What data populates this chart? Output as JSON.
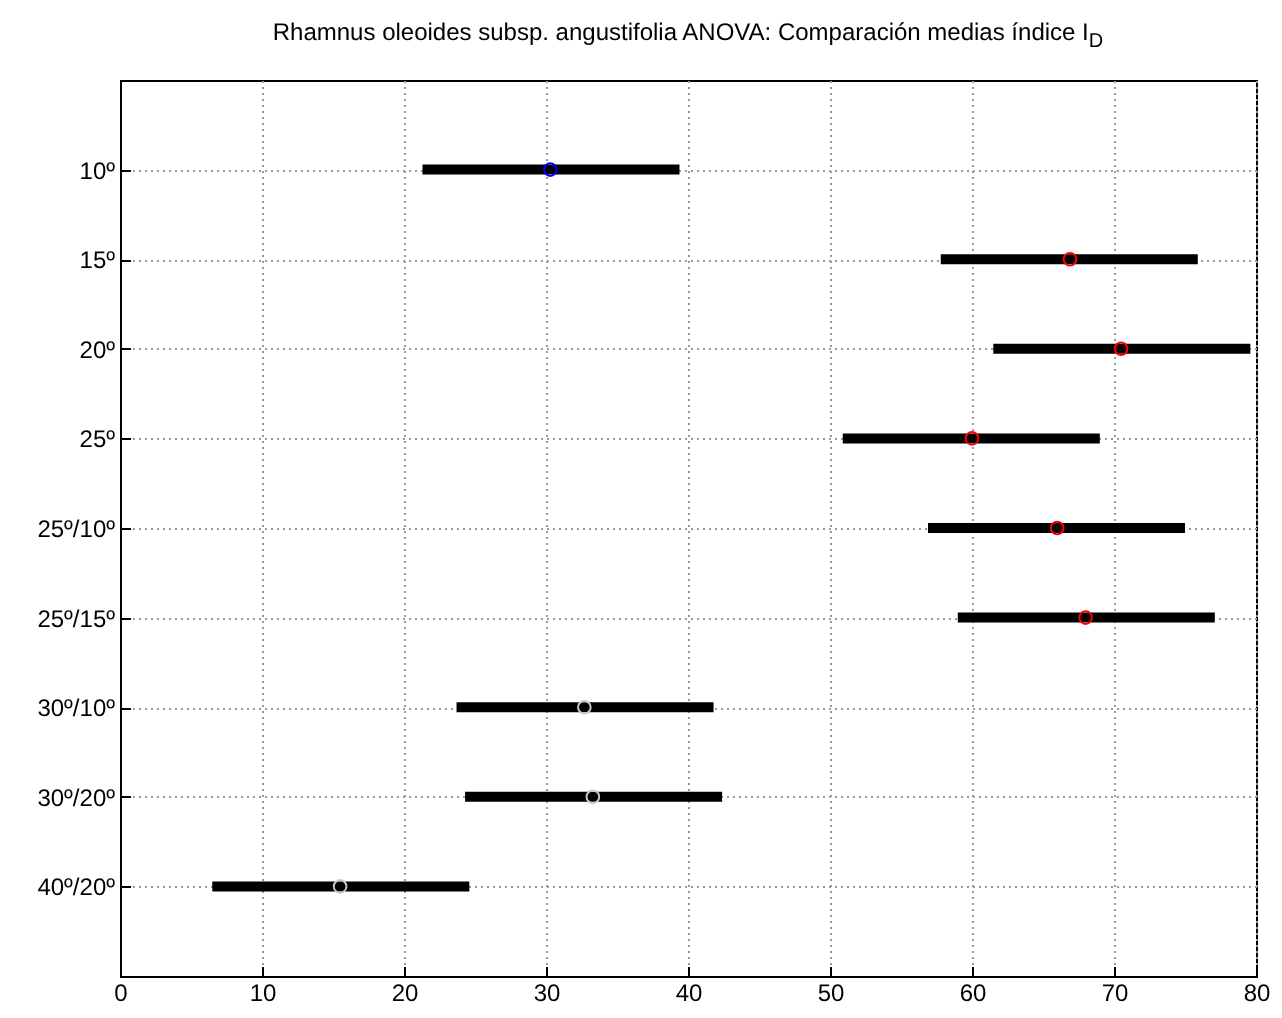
{
  "chart_data": {
    "type": "bar",
    "title": "Rhamnus oleoides subsp. angustifolia ANOVA: Comparación medias índice I$_{D}$",
    "orientation": "horizontal",
    "categories": [
      "10º",
      "15º",
      "20º",
      "25º",
      "25º/10º",
      "25º/15º",
      "30º/10º",
      "30º/20º",
      "40º/20º"
    ],
    "series": [
      {
        "color": "#000000",
        "base": [
          21.3,
          57.8,
          61.5,
          50.9,
          56.9,
          59.0,
          23.7,
          24.3,
          6.5
        ],
        "values": [
          18.1,
          18.1,
          18.1,
          18.1,
          18.1,
          18.1,
          18.1,
          18.1,
          18.1
        ]
      },
      {
        "type": "scatter",
        "marker": "circle",
        "colors": [
          "#0000ff",
          "#ff0000",
          "#ff0000",
          "#ff0000",
          "#ff0000",
          "#ff0000",
          "#c8c8c8",
          "#c8c8c8",
          "#c8c8c8"
        ],
        "values": [
          30.3,
          66.9,
          70.5,
          60.0,
          66.0,
          68.0,
          32.7,
          33.3,
          15.5
        ]
      }
    ],
    "xlim": [
      0,
      80
    ],
    "xticks": [
      0,
      10,
      20,
      30,
      40,
      50,
      60,
      70,
      80
    ],
    "grid": true
  }
}
